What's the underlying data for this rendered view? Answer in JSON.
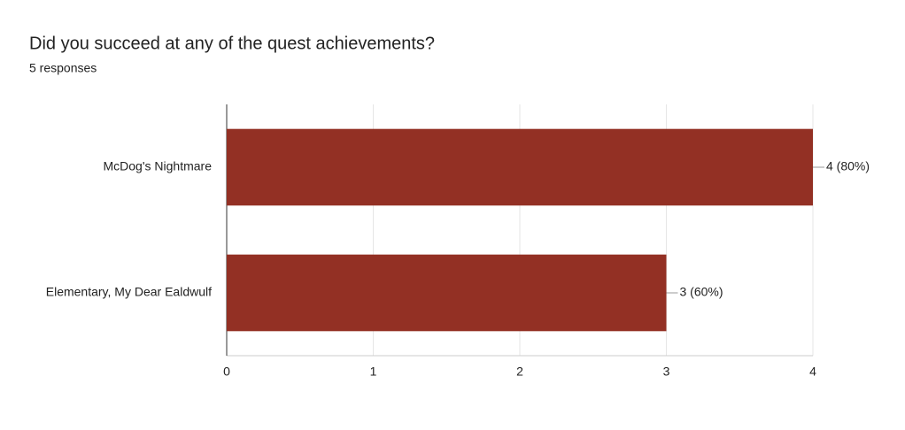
{
  "chart_data": {
    "type": "bar",
    "orientation": "horizontal",
    "title": "Did you succeed at any of the quest achievements?",
    "subtitle": "5 responses",
    "categories": [
      "McDog's Nightmare",
      "Elementary, My Dear Ealdwulf"
    ],
    "values": [
      4,
      3
    ],
    "value_labels": [
      "4 (80%)",
      "3 (60%)"
    ],
    "color": "#933024",
    "xlim": [
      0,
      4
    ],
    "xticks": [
      0,
      1,
      2,
      3,
      4
    ],
    "grid": true
  }
}
